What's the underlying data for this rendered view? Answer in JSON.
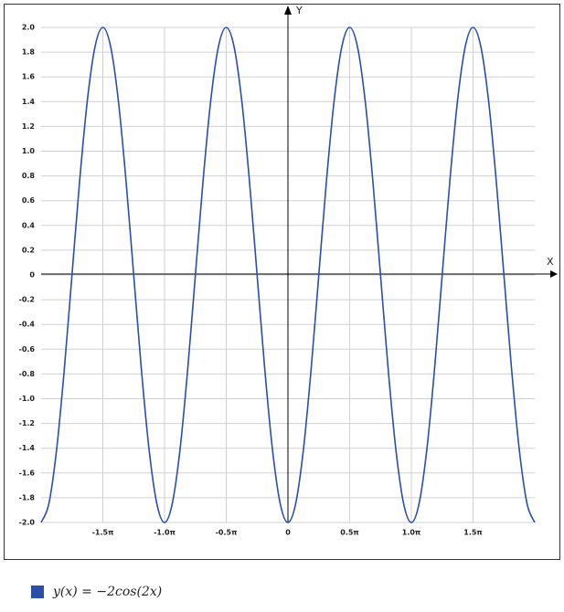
{
  "chart_data": {
    "type": "line",
    "xlabel": "X",
    "ylabel": "Y",
    "x": [
      -2,
      -1.9375,
      -1.875,
      -1.8125,
      -1.75,
      -1.6875,
      -1.625,
      -1.5625,
      -1.5,
      -1.4375,
      -1.375,
      -1.3125,
      -1.25,
      -1.1875,
      -1.125,
      -1.0625,
      -1,
      -0.9375,
      -0.875,
      -0.8125,
      -0.75,
      -0.6875,
      -0.625,
      -0.5625,
      -0.5,
      -0.4375,
      -0.375,
      -0.3125,
      -0.25,
      -0.1875,
      -0.125,
      -0.0625,
      0,
      0.0625,
      0.125,
      0.1875,
      0.25,
      0.3125,
      0.375,
      0.4375,
      0.5,
      0.5625,
      0.625,
      0.6875,
      0.75,
      0.8125,
      0.875,
      0.9375,
      1,
      1.0625,
      1.125,
      1.1875,
      1.25,
      1.3125,
      1.375,
      1.4375,
      1.5,
      1.5625,
      1.625,
      1.6875,
      1.75,
      1.8125,
      1.875,
      1.9375,
      2
    ],
    "series": [
      {
        "name": "y(x) = −2cos(2x)",
        "color": "#2a4fa8",
        "values": [
          -2,
          -1.848,
          -1.414,
          -0.765,
          0,
          0.765,
          1.414,
          1.848,
          2,
          1.848,
          1.414,
          0.765,
          0,
          -0.765,
          -1.414,
          -1.848,
          -2,
          -1.848,
          -1.414,
          -0.765,
          0,
          0.765,
          1.414,
          1.848,
          2,
          1.848,
          1.414,
          0.765,
          0,
          -0.765,
          -1.414,
          -1.848,
          -2,
          -1.848,
          -1.414,
          -0.765,
          0,
          0.765,
          1.414,
          1.848,
          2,
          1.848,
          1.414,
          0.765,
          0,
          -0.765,
          -1.414,
          -1.848,
          -2,
          -1.848,
          -1.414,
          -0.765,
          0,
          0.765,
          1.414,
          1.848,
          2,
          1.848,
          1.414,
          0.765,
          0,
          -0.765,
          -1.414,
          -1.848,
          -2
        ]
      }
    ],
    "xlim": [
      -2,
      2
    ],
    "xticks": [
      {
        "value": -1.5,
        "label": "-1.5π"
      },
      {
        "value": -1,
        "label": "-1.0π"
      },
      {
        "value": -0.5,
        "label": "-0.5π"
      },
      0,
      {
        "value": 0.5,
        "label": "0.5π"
      },
      {
        "value": 1,
        "label": "1.0π"
      },
      {
        "value": 1.5,
        "label": "1.5π"
      }
    ],
    "ylim": [
      -2,
      2
    ],
    "yticks": [
      {
        "value": 2,
        "label": "2.0"
      },
      1.8,
      1.6,
      1.4,
      1.2,
      {
        "value": 1,
        "label": "1.0"
      },
      0.8,
      0.6,
      0.4,
      0.2,
      0,
      -0.2,
      -0.4,
      -0.6,
      -0.8,
      {
        "value": -1,
        "label": "-1.0"
      },
      -1.2,
      -1.4,
      -1.6,
      -1.8,
      {
        "value": -2,
        "label": "-2.0"
      }
    ],
    "grid": true
  }
}
